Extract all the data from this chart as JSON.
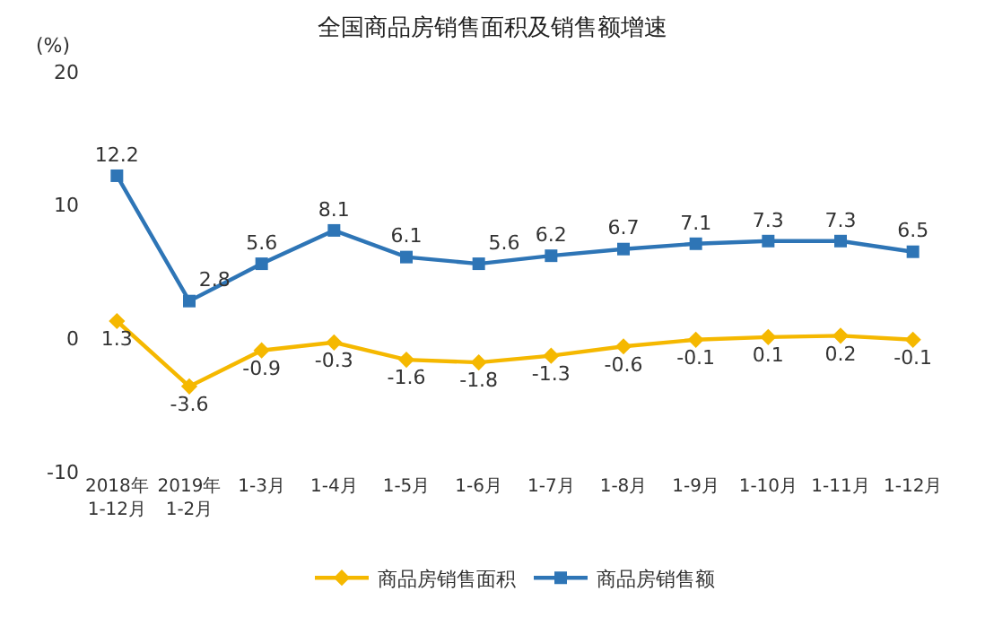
{
  "chart_data": {
    "type": "line",
    "title": "全国商品房销售面积及销售额增速",
    "ylabel": "(%)",
    "categories": [
      "2018年\n1-12月",
      "2019年\n1-2月",
      "1-3月",
      "1-4月",
      "1-5月",
      "1-6月",
      "1-7月",
      "1-8月",
      "1-9月",
      "1-10月",
      "1-11月",
      "1-12月"
    ],
    "series": [
      {
        "name": "商品房销售面积",
        "color": "#f5b800",
        "marker": "diamond",
        "values": [
          1.3,
          -3.6,
          -0.9,
          -0.3,
          -1.6,
          -1.8,
          -1.3,
          -0.6,
          -0.1,
          0.1,
          0.2,
          -0.1
        ]
      },
      {
        "name": "商品房销售额",
        "color": "#2e75b6",
        "marker": "square",
        "values": [
          12.2,
          2.8,
          5.6,
          8.1,
          6.1,
          5.6,
          6.2,
          6.7,
          7.1,
          7.3,
          7.3,
          6.5
        ]
      }
    ],
    "ylim": [
      -10,
      20
    ],
    "yticks": [
      -10,
      0,
      10,
      20
    ],
    "grid": false,
    "legend": "bottom",
    "data_labels": true,
    "line_style": "solid"
  }
}
